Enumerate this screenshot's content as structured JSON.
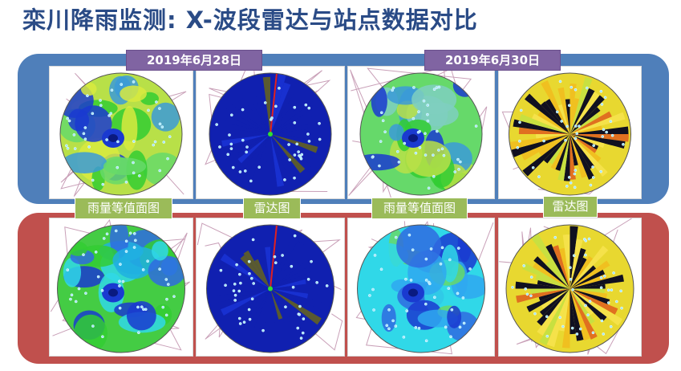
{
  "page": {
    "title": "栾川降雨监测: X-波段雷达与站点数据对比"
  },
  "dates": [
    "2019年6月28日",
    "2019年6月30日"
  ],
  "labels": {
    "contour": "雨量等值面图",
    "radar": "雷达图"
  },
  "colors": {
    "title": "#2a4b86",
    "band_top": "#4f7fba",
    "band_bottom": "#c0504d",
    "date_badge": "#8064a2",
    "label_green": "#9bbb59",
    "radar_blue": "#1020b0",
    "contour_green": "#33cc33",
    "contour_yellow": "#d8ea40",
    "contour_cyan": "#30d8e8",
    "contour_blue": "#1a3ad0"
  },
  "panels": [
    {
      "kind": "contour",
      "theme": "green-yellow",
      "row": "top"
    },
    {
      "kind": "radar",
      "theme": "blue",
      "row": "top"
    },
    {
      "kind": "contour",
      "theme": "green",
      "row": "top"
    },
    {
      "kind": "radar",
      "theme": "yellow-black",
      "row": "top"
    },
    {
      "kind": "contour",
      "theme": "green-cyan",
      "row": "bottom"
    },
    {
      "kind": "radar",
      "theme": "blue",
      "row": "bottom"
    },
    {
      "kind": "contour",
      "theme": "cyan-blue",
      "row": "bottom"
    },
    {
      "kind": "radar",
      "theme": "yellow-black",
      "row": "bottom"
    }
  ]
}
